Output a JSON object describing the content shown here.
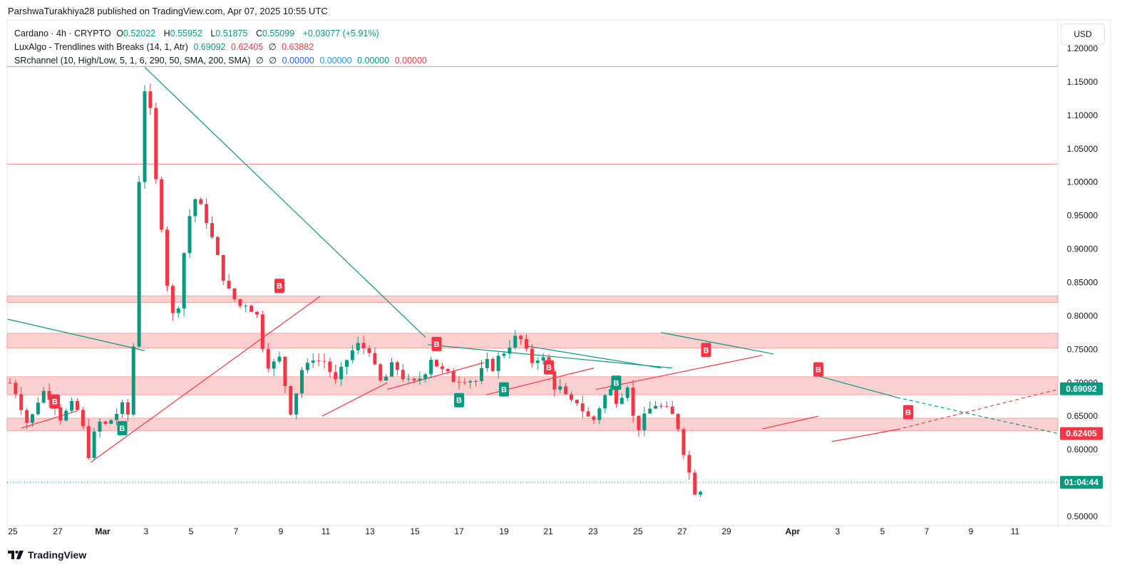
{
  "header": {
    "published_line": "ParshwaTurakhiya28 published on TradingView.com, Apr 07, 2025 10:55 UTC",
    "currency_button": "USD",
    "brand": "TradingView"
  },
  "legend": {
    "symbol": "Cardano · 4h · CRYPTO",
    "ohlc": [
      {
        "label": "O",
        "value": "0.52022"
      },
      {
        "label": "H",
        "value": "0.55952"
      },
      {
        "label": "L",
        "value": "0.51875"
      },
      {
        "label": "C",
        "value": "0.55099"
      }
    ],
    "change": "+0.03077 (+5.91%)",
    "indicator1": {
      "name": "LuxAlgo - Trendlines with Breaks (14, 1, Atr)",
      "v1": "0.69092",
      "v2": "0.62405",
      "v3": "0.63882"
    },
    "indicator2": {
      "name": "SRchannel (10, High/Low, 5, 1, 6, 290, 50, SMA, 200, SMA)",
      "v1": "0.00000",
      "v2": "0.00000",
      "v3": "0.00000",
      "v4": "0.00000"
    }
  },
  "colors": {
    "up": "#089981",
    "down": "#f23645",
    "zone": "#f7a9a9",
    "trend_down": "#089981",
    "trend_up": "#f23645"
  },
  "chart_data": {
    "type": "candlestick",
    "title": "Cardano · 4h · CRYPTO",
    "y_ticks": [
      "1.20000",
      "1.15000",
      "1.10000",
      "1.05000",
      "1.00000",
      "0.95000",
      "0.90000",
      "0.85000",
      "0.80000",
      "0.75000",
      "0.70000",
      "0.65000",
      "0.60000",
      "0.50000"
    ],
    "x_ticks": [
      "25",
      "27",
      "Mar",
      "3",
      "5",
      "7",
      "9",
      "11",
      "13",
      "15",
      "17",
      "19",
      "21",
      "23",
      "25",
      "27",
      "29",
      "Apr",
      "3",
      "5",
      "7",
      "9",
      "11"
    ],
    "ylim": [
      0.49,
      1.22
    ],
    "price_labels": [
      {
        "text": "0.69092",
        "value": 0.69092,
        "color": "#089981"
      },
      {
        "text": "0.62405",
        "value": 0.62405,
        "color": "#f23645"
      },
      {
        "text": "01:04:44",
        "value": 0.55099,
        "color": "#089981"
      }
    ],
    "sr_zones": [
      {
        "from": 0.82,
        "to": 0.83
      },
      {
        "from": 0.752,
        "to": 0.774
      },
      {
        "from": 0.682,
        "to": 0.709
      },
      {
        "from": 0.628,
        "to": 0.647
      }
    ],
    "sr_lines": [
      1.173,
      1.027
    ],
    "current_price": 0.55099,
    "break_labels": [
      {
        "text": "B",
        "x": "Feb 27",
        "y": 0.672,
        "color": "#f23645"
      },
      {
        "text": "B",
        "x": "Mar 2",
        "y": 0.632,
        "color": "#089981"
      },
      {
        "text": "B",
        "x": "Mar 9",
        "y": 0.845,
        "color": "#f23645"
      },
      {
        "text": "B",
        "x": "Mar 16",
        "y": 0.758,
        "color": "#f23645"
      },
      {
        "text": "B",
        "x": "Mar 17",
        "y": 0.674,
        "color": "#089981"
      },
      {
        "text": "B",
        "x": "Mar 19",
        "y": 0.69,
        "color": "#089981"
      },
      {
        "text": "B",
        "x": "Mar 21",
        "y": 0.723,
        "color": "#f23645"
      },
      {
        "text": "B",
        "x": "Mar 24",
        "y": 0.7,
        "color": "#089981"
      },
      {
        "text": "B",
        "x": "Mar 28",
        "y": 0.749,
        "color": "#f23645"
      },
      {
        "text": "B",
        "x": "Apr 2",
        "y": 0.72,
        "color": "#f23645"
      },
      {
        "text": "B",
        "x": "Apr 6",
        "y": 0.656,
        "color": "#f23645"
      }
    ],
    "close_path": [
      [
        0.0,
        0.7
      ],
      [
        0.4,
        0.68
      ],
      [
        0.7,
        0.64
      ],
      [
        1.0,
        0.65
      ],
      [
        1.3,
        0.68
      ],
      [
        1.6,
        0.69
      ],
      [
        2.0,
        0.67
      ],
      [
        2.3,
        0.645
      ],
      [
        2.6,
        0.66
      ],
      [
        2.9,
        0.668
      ],
      [
        3.2,
        0.64
      ],
      [
        3.4,
        0.6
      ],
      [
        3.6,
        0.59
      ],
      [
        3.8,
        0.63
      ],
      [
        4.0,
        0.64
      ],
      [
        4.3,
        0.635
      ],
      [
        4.6,
        0.65
      ],
      [
        4.9,
        0.66
      ],
      [
        5.1,
        0.665
      ],
      [
        5.4,
        0.64
      ],
      [
        5.6,
        0.87
      ],
      [
        5.8,
        1.05
      ],
      [
        6.0,
        1.14
      ],
      [
        6.1,
        1.17
      ],
      [
        6.3,
        1.08
      ],
      [
        6.5,
        1.0
      ],
      [
        6.7,
        0.96
      ],
      [
        6.9,
        0.87
      ],
      [
        7.1,
        0.83
      ],
      [
        7.3,
        0.79
      ],
      [
        7.5,
        0.82
      ],
      [
        7.7,
        0.88
      ],
      [
        7.9,
        0.94
      ],
      [
        8.1,
        0.96
      ],
      [
        8.3,
        0.98
      ],
      [
        8.5,
        0.96
      ],
      [
        8.7,
        0.95
      ],
      [
        8.9,
        0.93
      ],
      [
        9.1,
        0.9
      ],
      [
        9.3,
        0.88
      ],
      [
        9.5,
        0.86
      ],
      [
        9.7,
        0.84
      ],
      [
        9.9,
        0.82
      ],
      [
        10.1,
        0.83
      ],
      [
        10.3,
        0.81
      ],
      [
        10.5,
        0.82
      ],
      [
        10.7,
        0.81
      ],
      [
        10.9,
        0.82
      ],
      [
        11.1,
        0.78
      ],
      [
        11.3,
        0.75
      ],
      [
        11.5,
        0.73
      ],
      [
        11.7,
        0.72
      ],
      [
        11.9,
        0.75
      ],
      [
        12.1,
        0.72
      ],
      [
        12.3,
        0.69
      ],
      [
        12.5,
        0.66
      ],
      [
        12.7,
        0.68
      ],
      [
        12.9,
        0.71
      ],
      [
        13.1,
        0.73
      ],
      [
        13.3,
        0.72
      ],
      [
        13.5,
        0.74
      ],
      [
        13.7,
        0.73
      ],
      [
        13.9,
        0.74
      ],
      [
        14.1,
        0.725
      ],
      [
        14.3,
        0.715
      ],
      [
        14.5,
        0.7
      ],
      [
        14.7,
        0.71
      ],
      [
        14.9,
        0.73
      ],
      [
        15.1,
        0.74
      ],
      [
        15.3,
        0.75
      ],
      [
        15.5,
        0.755
      ],
      [
        15.7,
        0.75
      ],
      [
        15.9,
        0.76
      ],
      [
        16.1,
        0.745
      ],
      [
        16.3,
        0.71
      ],
      [
        16.5,
        0.7
      ],
      [
        16.7,
        0.705
      ],
      [
        16.9,
        0.72
      ],
      [
        17.1,
        0.725
      ],
      [
        17.3,
        0.72
      ],
      [
        17.5,
        0.71
      ],
      [
        17.7,
        0.7
      ],
      [
        17.9,
        0.695
      ],
      [
        18.1,
        0.7
      ],
      [
        18.3,
        0.71
      ],
      [
        18.5,
        0.72
      ],
      [
        18.7,
        0.74
      ],
      [
        18.9,
        0.735
      ],
      [
        19.1,
        0.72
      ],
      [
        19.3,
        0.715
      ],
      [
        19.5,
        0.71
      ],
      [
        19.7,
        0.705
      ],
      [
        19.9,
        0.71
      ],
      [
        20.1,
        0.705
      ],
      [
        20.3,
        0.71
      ],
      [
        20.5,
        0.705
      ],
      [
        20.7,
        0.7
      ],
      [
        20.9,
        0.71
      ],
      [
        21.1,
        0.72
      ],
      [
        21.3,
        0.73
      ],
      [
        21.5,
        0.725
      ],
      [
        21.7,
        0.735
      ],
      [
        21.9,
        0.74
      ],
      [
        22.1,
        0.755
      ],
      [
        22.3,
        0.76
      ],
      [
        22.5,
        0.765
      ],
      [
        22.7,
        0.77
      ],
      [
        22.9,
        0.745
      ],
      [
        23.1,
        0.74
      ],
      [
        23.3,
        0.73
      ],
      [
        23.5,
        0.74
      ],
      [
        23.7,
        0.735
      ],
      [
        23.9,
        0.73
      ],
      [
        24.1,
        0.7
      ],
      [
        24.3,
        0.695
      ],
      [
        24.5,
        0.69
      ],
      [
        24.7,
        0.68
      ],
      [
        24.9,
        0.665
      ],
      [
        25.1,
        0.67
      ],
      [
        25.3,
        0.675
      ],
      [
        25.5,
        0.66
      ],
      [
        25.7,
        0.65
      ],
      [
        25.9,
        0.64
      ],
      [
        26.1,
        0.65
      ],
      [
        26.3,
        0.67
      ],
      [
        26.5,
        0.68
      ],
      [
        26.7,
        0.69
      ],
      [
        26.9,
        0.68
      ],
      [
        27.1,
        0.675
      ],
      [
        27.3,
        0.69
      ],
      [
        27.5,
        0.7
      ],
      [
        27.7,
        0.65
      ],
      [
        27.9,
        0.64
      ],
      [
        28.1,
        0.63
      ],
      [
        28.3,
        0.65
      ],
      [
        28.5,
        0.66
      ],
      [
        28.7,
        0.67
      ],
      [
        28.9,
        0.665
      ],
      [
        29.1,
        0.66
      ],
      [
        29.3,
        0.655
      ],
      [
        29.5,
        0.65
      ],
      [
        29.7,
        0.64
      ],
      [
        29.9,
        0.62
      ],
      [
        30.1,
        0.58
      ],
      [
        30.3,
        0.56
      ],
      [
        30.5,
        0.54
      ],
      [
        30.6,
        0.52
      ],
      [
        30.8,
        0.551
      ]
    ]
  }
}
